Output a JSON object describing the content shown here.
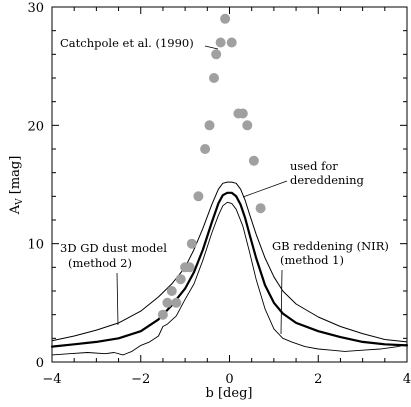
{
  "chart_data": {
    "type": "line",
    "title": "",
    "xlabel": "b [deg]",
    "ylabel": {
      "main": "A",
      "sub": "V",
      "unit": "[mag]"
    },
    "xlim": [
      -4,
      4
    ],
    "ylim": [
      0,
      30
    ],
    "xticks": [
      -4,
      -2,
      0,
      2,
      4
    ],
    "yticks": [
      0,
      10,
      20,
      30
    ],
    "grid": false,
    "legend": "none",
    "series": [
      {
        "style": "thin",
        "x": [
          -4,
          -3.5,
          -3,
          -2.5,
          -2,
          -1.6,
          -1.3,
          -1,
          -0.8,
          -0.6,
          -0.4,
          -0.25,
          -0.15,
          -0.05,
          0.05,
          0.15,
          0.25,
          0.35,
          0.45,
          0.6,
          0.8,
          1.0,
          1.2,
          1.5,
          2.0,
          2.5,
          3.0,
          3.5,
          4.0
        ],
        "y": [
          1.8,
          2.2,
          2.7,
          3.3,
          4.3,
          5.5,
          6.6,
          8.0,
          9.5,
          11.3,
          13.3,
          14.6,
          15.1,
          15.2,
          15.2,
          15.1,
          14.6,
          13.7,
          12.5,
          10.8,
          8.8,
          7.2,
          6.0,
          4.9,
          3.8,
          3.0,
          2.4,
          1.9,
          1.7
        ]
      },
      {
        "style": "thick",
        "x": [
          -4,
          -3.5,
          -3,
          -2.5,
          -2,
          -1.6,
          -1.3,
          -1,
          -0.8,
          -0.6,
          -0.4,
          -0.25,
          -0.15,
          -0.05,
          0.05,
          0.15,
          0.25,
          0.35,
          0.45,
          0.6,
          0.8,
          1.0,
          1.2,
          1.5,
          2.0,
          2.5,
          3.0,
          3.5,
          4.0
        ],
        "y": [
          1.3,
          1.5,
          1.7,
          2.0,
          2.6,
          3.6,
          4.8,
          6.2,
          7.6,
          9.5,
          11.8,
          13.4,
          14.1,
          14.3,
          14.3,
          14.0,
          13.3,
          12.2,
          10.8,
          8.8,
          6.5,
          5.0,
          4.1,
          3.3,
          2.6,
          2.1,
          1.7,
          1.5,
          1.4
        ]
      },
      {
        "style": "dotted-thin",
        "x": [
          -4,
          -3.6,
          -3.2,
          -2.8,
          -2.6,
          -2.4,
          -2.2,
          -2.0,
          -1.8,
          -1.6,
          -1.5,
          -1.4,
          -1.2,
          -1.0,
          -0.8,
          -0.6,
          -0.4,
          -0.25,
          -0.15,
          -0.05,
          0.05,
          0.15,
          0.3,
          0.45,
          0.6,
          0.8,
          1.0,
          1.2,
          1.4,
          1.7,
          2.0,
          2.3,
          2.6,
          3.0,
          3.4,
          3.8,
          4.0
        ],
        "y": [
          0.6,
          0.7,
          0.8,
          0.7,
          0.8,
          0.6,
          0.9,
          1.4,
          1.7,
          2.2,
          3.0,
          3.2,
          3.9,
          5.3,
          6.6,
          8.6,
          10.9,
          12.4,
          13.2,
          13.5,
          13.4,
          12.9,
          11.5,
          9.3,
          7.0,
          4.5,
          2.8,
          2.0,
          1.7,
          1.3,
          1.1,
          1.0,
          0.9,
          1.0,
          1.1,
          1.3,
          1.5
        ]
      }
    ],
    "points": {
      "x": [
        -1.5,
        -1.4,
        -1.3,
        -1.2,
        -1.1,
        -1.0,
        -0.9,
        -0.85,
        -0.7,
        -0.55,
        -0.45,
        -0.35,
        -0.3,
        -0.2,
        -0.1,
        0.05,
        0.2,
        0.3,
        0.4,
        0.55,
        0.7
      ],
      "y": [
        4,
        5,
        6,
        5,
        7,
        8,
        8,
        10,
        14,
        18,
        20,
        24,
        26,
        27,
        29,
        27,
        21,
        21,
        20,
        17,
        13
      ]
    },
    "annotations": [
      {
        "id": "catchpole",
        "text": "Catchpole et al. (1990)"
      },
      {
        "id": "used-line1",
        "text": "used for"
      },
      {
        "id": "used-line2",
        "text": "dereddening"
      },
      {
        "id": "gd-line1",
        "text": "3D GD dust model"
      },
      {
        "id": "gd-line2",
        "text": "(method 2)"
      },
      {
        "id": "gb-line1",
        "text": "GB reddening (NIR)"
      },
      {
        "id": "gb-line2",
        "text": "(method 1)"
      }
    ]
  }
}
